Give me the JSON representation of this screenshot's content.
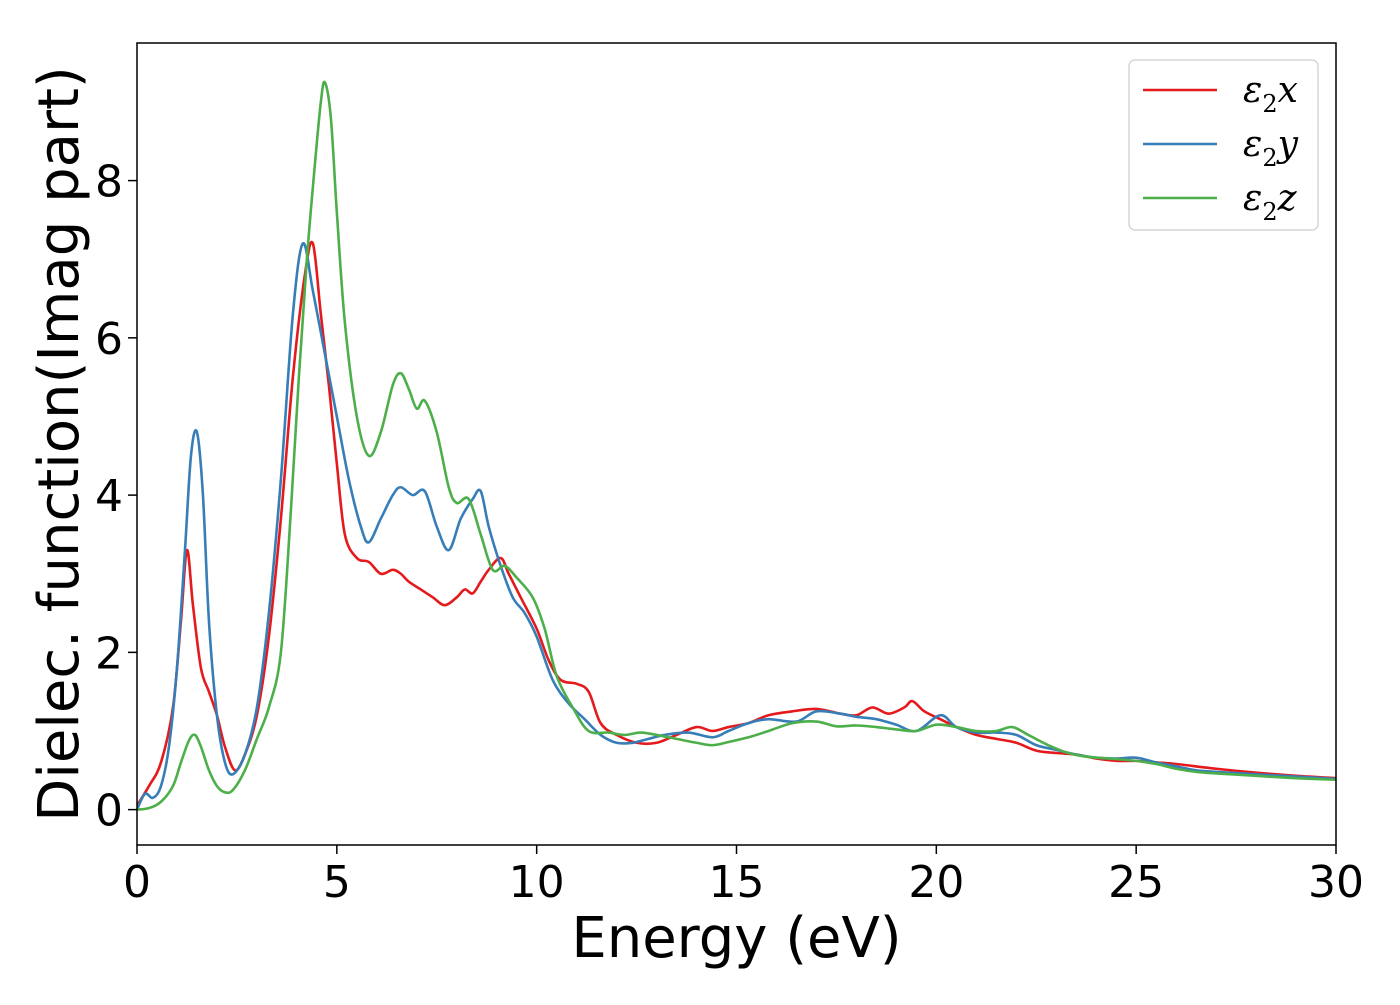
{
  "chart_data": {
    "type": "line",
    "title": "",
    "xlabel": "Energy (eV)",
    "ylabel": "Dielec. function(Imag part)",
    "xlim": [
      0,
      30
    ],
    "ylim": [
      -0.45,
      9.75
    ],
    "xticks": [
      0,
      5,
      10,
      15,
      20,
      25,
      30
    ],
    "yticks": [
      0,
      2,
      4,
      6,
      8
    ],
    "grid": false,
    "legend_position": "top-right",
    "series": [
      {
        "name": "ε2x",
        "legend_base": "ε",
        "legend_sub": "2",
        "legend_var": "x",
        "color": "#e41a1c",
        "points": [
          [
            0,
            0.05
          ],
          [
            0.3,
            0.3
          ],
          [
            0.6,
            0.6
          ],
          [
            0.9,
            1.3
          ],
          [
            1.1,
            2.4
          ],
          [
            1.25,
            3.3
          ],
          [
            1.4,
            2.6
          ],
          [
            1.6,
            1.8
          ],
          [
            1.8,
            1.5
          ],
          [
            2.0,
            1.2
          ],
          [
            2.2,
            0.8
          ],
          [
            2.45,
            0.5
          ],
          [
            2.7,
            0.7
          ],
          [
            3.0,
            1.2
          ],
          [
            3.3,
            2.2
          ],
          [
            3.6,
            3.7
          ],
          [
            3.9,
            5.5
          ],
          [
            4.2,
            6.8
          ],
          [
            4.4,
            7.2
          ],
          [
            4.6,
            6.3
          ],
          [
            4.8,
            5.4
          ],
          [
            5.0,
            4.4
          ],
          [
            5.2,
            3.5
          ],
          [
            5.5,
            3.2
          ],
          [
            5.8,
            3.15
          ],
          [
            6.1,
            3.0
          ],
          [
            6.4,
            3.05
          ],
          [
            6.6,
            3.0
          ],
          [
            6.8,
            2.9
          ],
          [
            7.1,
            2.8
          ],
          [
            7.4,
            2.7
          ],
          [
            7.7,
            2.6
          ],
          [
            8.0,
            2.7
          ],
          [
            8.2,
            2.8
          ],
          [
            8.4,
            2.75
          ],
          [
            8.6,
            2.9
          ],
          [
            8.8,
            3.05
          ],
          [
            9.1,
            3.2
          ],
          [
            9.3,
            3.0
          ],
          [
            9.6,
            2.7
          ],
          [
            10.0,
            2.3
          ],
          [
            10.3,
            1.9
          ],
          [
            10.6,
            1.65
          ],
          [
            11.0,
            1.6
          ],
          [
            11.3,
            1.5
          ],
          [
            11.6,
            1.1
          ],
          [
            12.0,
            0.95
          ],
          [
            12.5,
            0.85
          ],
          [
            13.0,
            0.85
          ],
          [
            13.5,
            0.95
          ],
          [
            14.0,
            1.05
          ],
          [
            14.4,
            1.0
          ],
          [
            14.8,
            1.05
          ],
          [
            15.3,
            1.1
          ],
          [
            15.8,
            1.2
          ],
          [
            16.4,
            1.25
          ],
          [
            17.0,
            1.28
          ],
          [
            17.6,
            1.22
          ],
          [
            18.0,
            1.2
          ],
          [
            18.4,
            1.3
          ],
          [
            18.8,
            1.22
          ],
          [
            19.2,
            1.3
          ],
          [
            19.4,
            1.38
          ],
          [
            19.7,
            1.25
          ],
          [
            20.1,
            1.15
          ],
          [
            20.5,
            1.05
          ],
          [
            21.0,
            0.95
          ],
          [
            21.5,
            0.9
          ],
          [
            22.0,
            0.85
          ],
          [
            22.5,
            0.75
          ],
          [
            23.0,
            0.72
          ],
          [
            23.5,
            0.7
          ],
          [
            24.0,
            0.65
          ],
          [
            24.5,
            0.62
          ],
          [
            25.0,
            0.62
          ],
          [
            25.5,
            0.6
          ],
          [
            26.0,
            0.58
          ],
          [
            27.0,
            0.52
          ],
          [
            28.0,
            0.47
          ],
          [
            29.0,
            0.43
          ],
          [
            30.0,
            0.4
          ]
        ]
      },
      {
        "name": "ε2y",
        "legend_base": "ε",
        "legend_sub": "2",
        "legend_var": "y",
        "color": "#377eb8",
        "points": [
          [
            0,
            0.0
          ],
          [
            0.2,
            0.2
          ],
          [
            0.4,
            0.15
          ],
          [
            0.6,
            0.3
          ],
          [
            0.8,
            0.8
          ],
          [
            1.0,
            1.8
          ],
          [
            1.2,
            3.3
          ],
          [
            1.35,
            4.5
          ],
          [
            1.5,
            4.8
          ],
          [
            1.65,
            4.0
          ],
          [
            1.8,
            2.4
          ],
          [
            2.0,
            1.2
          ],
          [
            2.2,
            0.6
          ],
          [
            2.4,
            0.45
          ],
          [
            2.7,
            0.7
          ],
          [
            3.0,
            1.3
          ],
          [
            3.3,
            2.5
          ],
          [
            3.6,
            4.2
          ],
          [
            3.9,
            6.3
          ],
          [
            4.15,
            7.2
          ],
          [
            4.4,
            6.6
          ],
          [
            4.7,
            5.8
          ],
          [
            5.0,
            5.0
          ],
          [
            5.3,
            4.2
          ],
          [
            5.6,
            3.6
          ],
          [
            5.8,
            3.4
          ],
          [
            6.1,
            3.7
          ],
          [
            6.4,
            4.0
          ],
          [
            6.6,
            4.1
          ],
          [
            6.9,
            4.0
          ],
          [
            7.2,
            4.05
          ],
          [
            7.5,
            3.6
          ],
          [
            7.8,
            3.3
          ],
          [
            8.1,
            3.7
          ],
          [
            8.4,
            3.95
          ],
          [
            8.6,
            4.05
          ],
          [
            8.8,
            3.6
          ],
          [
            9.1,
            3.1
          ],
          [
            9.4,
            2.7
          ],
          [
            9.7,
            2.5
          ],
          [
            10.0,
            2.2
          ],
          [
            10.4,
            1.65
          ],
          [
            10.8,
            1.35
          ],
          [
            11.2,
            1.15
          ],
          [
            11.6,
            0.95
          ],
          [
            12.0,
            0.85
          ],
          [
            12.4,
            0.85
          ],
          [
            12.8,
            0.9
          ],
          [
            13.2,
            0.95
          ],
          [
            13.8,
            0.98
          ],
          [
            14.4,
            0.92
          ],
          [
            14.8,
            1.0
          ],
          [
            15.3,
            1.1
          ],
          [
            15.8,
            1.15
          ],
          [
            16.5,
            1.12
          ],
          [
            17.0,
            1.25
          ],
          [
            17.6,
            1.22
          ],
          [
            18.0,
            1.18
          ],
          [
            18.5,
            1.15
          ],
          [
            19.0,
            1.08
          ],
          [
            19.5,
            1.0
          ],
          [
            20.1,
            1.2
          ],
          [
            20.5,
            1.05
          ],
          [
            21.0,
            0.98
          ],
          [
            21.5,
            0.98
          ],
          [
            22.0,
            0.95
          ],
          [
            22.5,
            0.82
          ],
          [
            23.0,
            0.76
          ],
          [
            23.5,
            0.7
          ],
          [
            24.0,
            0.66
          ],
          [
            24.5,
            0.65
          ],
          [
            25.0,
            0.66
          ],
          [
            25.5,
            0.6
          ],
          [
            26.0,
            0.55
          ],
          [
            26.5,
            0.5
          ],
          [
            27.0,
            0.48
          ],
          [
            28.0,
            0.45
          ],
          [
            29.0,
            0.42
          ],
          [
            30.0,
            0.39
          ]
        ]
      },
      {
        "name": "ε2z",
        "legend_base": "ε",
        "legend_sub": "2",
        "legend_var": "z",
        "color": "#4daf4a",
        "points": [
          [
            0,
            0.0
          ],
          [
            0.3,
            0.02
          ],
          [
            0.6,
            0.1
          ],
          [
            0.9,
            0.3
          ],
          [
            1.1,
            0.6
          ],
          [
            1.3,
            0.88
          ],
          [
            1.45,
            0.95
          ],
          [
            1.6,
            0.8
          ],
          [
            1.8,
            0.5
          ],
          [
            2.0,
            0.3
          ],
          [
            2.2,
            0.22
          ],
          [
            2.4,
            0.25
          ],
          [
            2.7,
            0.5
          ],
          [
            3.0,
            0.9
          ],
          [
            3.3,
            1.3
          ],
          [
            3.6,
            2.0
          ],
          [
            3.85,
            3.8
          ],
          [
            4.05,
            5.5
          ],
          [
            4.25,
            7.0
          ],
          [
            4.45,
            8.2
          ],
          [
            4.6,
            9.0
          ],
          [
            4.7,
            9.25
          ],
          [
            4.85,
            8.8
          ],
          [
            5.0,
            7.6
          ],
          [
            5.2,
            6.2
          ],
          [
            5.5,
            5.0
          ],
          [
            5.8,
            4.5
          ],
          [
            6.1,
            4.8
          ],
          [
            6.4,
            5.4
          ],
          [
            6.6,
            5.55
          ],
          [
            6.8,
            5.35
          ],
          [
            7.0,
            5.1
          ],
          [
            7.2,
            5.2
          ],
          [
            7.5,
            4.8
          ],
          [
            7.8,
            4.1
          ],
          [
            8.0,
            3.9
          ],
          [
            8.3,
            3.95
          ],
          [
            8.6,
            3.5
          ],
          [
            8.9,
            3.05
          ],
          [
            9.2,
            3.1
          ],
          [
            9.5,
            2.95
          ],
          [
            9.9,
            2.7
          ],
          [
            10.2,
            2.3
          ],
          [
            10.5,
            1.7
          ],
          [
            10.9,
            1.3
          ],
          [
            11.3,
            1.0
          ],
          [
            11.8,
            0.98
          ],
          [
            12.2,
            0.95
          ],
          [
            12.6,
            0.98
          ],
          [
            13.0,
            0.95
          ],
          [
            13.5,
            0.9
          ],
          [
            14.0,
            0.85
          ],
          [
            14.4,
            0.82
          ],
          [
            14.8,
            0.86
          ],
          [
            15.3,
            0.92
          ],
          [
            15.8,
            1.0
          ],
          [
            16.4,
            1.1
          ],
          [
            17.0,
            1.12
          ],
          [
            17.5,
            1.06
          ],
          [
            18.0,
            1.07
          ],
          [
            18.5,
            1.05
          ],
          [
            19.0,
            1.02
          ],
          [
            19.5,
            1.0
          ],
          [
            20.0,
            1.08
          ],
          [
            20.5,
            1.05
          ],
          [
            21.0,
            1.0
          ],
          [
            21.5,
            1.0
          ],
          [
            21.9,
            1.05
          ],
          [
            22.3,
            0.95
          ],
          [
            22.8,
            0.82
          ],
          [
            23.3,
            0.72
          ],
          [
            23.8,
            0.67
          ],
          [
            24.3,
            0.65
          ],
          [
            25.0,
            0.62
          ],
          [
            25.5,
            0.58
          ],
          [
            26.0,
            0.52
          ],
          [
            26.5,
            0.48
          ],
          [
            27.0,
            0.46
          ],
          [
            28.0,
            0.43
          ],
          [
            29.0,
            0.4
          ],
          [
            30.0,
            0.38
          ]
        ]
      }
    ]
  }
}
